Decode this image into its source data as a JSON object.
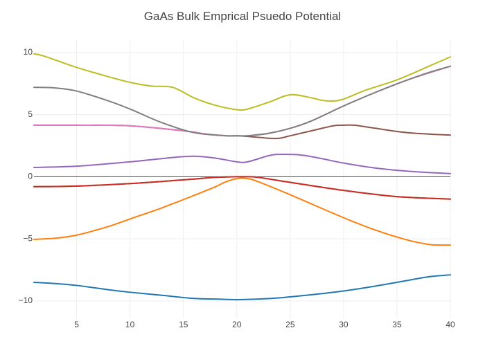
{
  "chart_data": {
    "type": "line",
    "title": "GaAs Bulk Emprical Psuedo Potential",
    "xlabel": "",
    "ylabel": "",
    "xlim": [
      1,
      40
    ],
    "ylim": [
      -11.4,
      11.0
    ],
    "grid": true,
    "legend": "none",
    "x_ticks": [
      5,
      10,
      15,
      20,
      25,
      30,
      35,
      40
    ],
    "y_ticks": [
      -10,
      -5,
      0,
      5,
      10
    ],
    "zero_line": true,
    "series": [
      {
        "color": "#1f77b4",
        "x": [
          1,
          3,
          5,
          8,
          10,
          13,
          16,
          18,
          20,
          22,
          24,
          27,
          30,
          33,
          36,
          38,
          40
        ],
        "y": [
          -8.5,
          -8.6,
          -8.75,
          -9.1,
          -9.3,
          -9.55,
          -9.8,
          -9.85,
          -9.9,
          -9.85,
          -9.75,
          -9.5,
          -9.2,
          -8.8,
          -8.35,
          -8.05,
          -7.9
        ]
      },
      {
        "color": "#ff7f0e",
        "x": [
          1,
          2,
          3,
          5,
          8,
          10,
          13,
          16,
          18,
          19,
          20,
          21,
          22,
          25,
          30,
          33,
          36,
          38,
          39,
          40
        ],
        "y": [
          -5.05,
          -5.0,
          -4.95,
          -4.7,
          -4.0,
          -3.4,
          -2.5,
          -1.5,
          -0.8,
          -0.4,
          -0.15,
          -0.15,
          -0.4,
          -1.45,
          -3.3,
          -4.3,
          -5.1,
          -5.45,
          -5.5,
          -5.5
        ]
      },
      {
        "color": "#2ca02c",
        "x": [
          1,
          5,
          10,
          15,
          18,
          20,
          21,
          22,
          25,
          30,
          35,
          40
        ],
        "y": [
          -0.8,
          -0.75,
          -0.55,
          -0.25,
          -0.05,
          0.0,
          0.0,
          -0.05,
          -0.45,
          -1.1,
          -1.6,
          -1.8
        ]
      },
      {
        "color": "#d62728",
        "x": [
          1,
          5,
          10,
          15,
          18,
          20,
          21,
          22,
          25,
          30,
          35,
          40
        ],
        "y": [
          -0.8,
          -0.75,
          -0.55,
          -0.25,
          -0.05,
          0.0,
          0.0,
          -0.05,
          -0.45,
          -1.1,
          -1.6,
          -1.8
        ]
      },
      {
        "color": "#9467bd",
        "x": [
          1,
          5,
          10,
          14,
          16,
          18,
          20,
          21,
          23,
          24,
          26,
          28,
          30,
          33,
          36,
          40
        ],
        "y": [
          0.75,
          0.85,
          1.2,
          1.55,
          1.65,
          1.5,
          1.2,
          1.2,
          1.7,
          1.8,
          1.75,
          1.45,
          1.1,
          0.7,
          0.45,
          0.25
        ]
      },
      {
        "color": "#8c564b",
        "x": [
          1,
          5,
          10,
          15,
          17,
          19,
          20,
          21,
          23,
          24,
          25,
          27,
          29,
          30,
          31,
          33,
          36,
          40
        ],
        "y": [
          4.15,
          4.15,
          4.1,
          3.7,
          3.45,
          3.3,
          3.3,
          3.25,
          3.1,
          3.1,
          3.3,
          3.7,
          4.1,
          4.15,
          4.15,
          3.9,
          3.55,
          3.35
        ]
      },
      {
        "color": "#e377c2",
        "x": [
          1,
          5,
          10,
          15,
          17,
          19,
          20,
          21,
          23,
          25,
          27,
          30,
          33,
          36,
          40
        ],
        "y": [
          4.15,
          4.15,
          4.1,
          3.7,
          3.45,
          3.3,
          3.3,
          3.3,
          3.5,
          3.9,
          4.5,
          5.7,
          6.8,
          7.8,
          8.9
        ]
      },
      {
        "color": "#7f7f7f",
        "x": [
          1,
          3,
          5,
          8,
          10,
          13,
          16,
          19,
          20,
          21,
          23,
          25,
          27,
          30,
          33,
          36,
          38,
          40
        ],
        "y": [
          7.2,
          7.15,
          6.9,
          6.1,
          5.45,
          4.35,
          3.55,
          3.3,
          3.3,
          3.3,
          3.5,
          3.9,
          4.5,
          5.7,
          6.8,
          7.8,
          8.4,
          8.9
        ]
      },
      {
        "color": "#bcbd22",
        "x": [
          1,
          2,
          5,
          8,
          10,
          12,
          14,
          16,
          18,
          20,
          21,
          23,
          25,
          27,
          28,
          29,
          30,
          32,
          35,
          38,
          40
        ],
        "y": [
          9.9,
          9.7,
          8.8,
          8.05,
          7.6,
          7.3,
          7.2,
          6.35,
          5.75,
          5.4,
          5.45,
          6.0,
          6.6,
          6.35,
          6.15,
          6.1,
          6.25,
          6.95,
          7.8,
          8.9,
          9.65
        ]
      }
    ]
  }
}
